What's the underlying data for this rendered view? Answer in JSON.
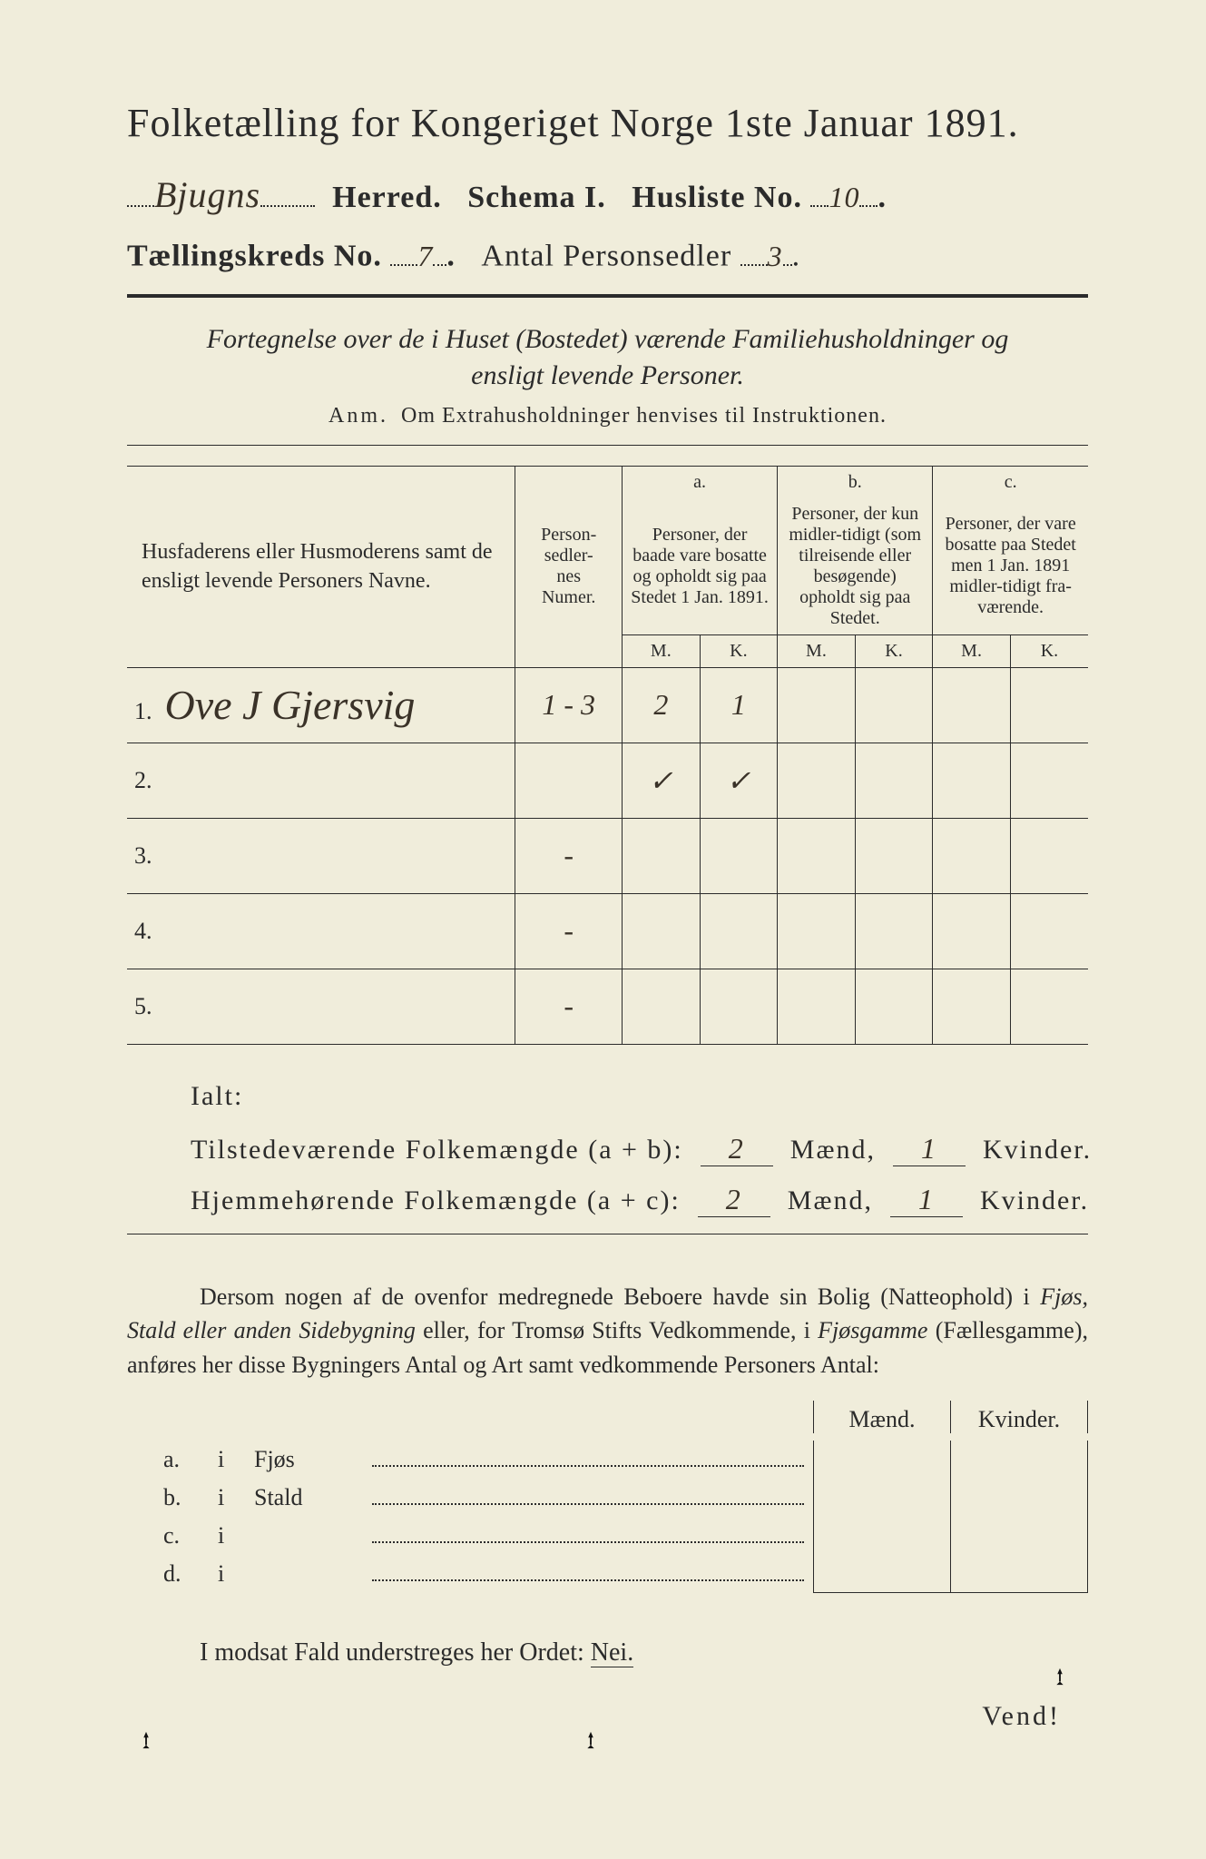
{
  "colors": {
    "paper": "#f0eddb",
    "ink": "#2b2b2b",
    "handwriting": "#3a3228"
  },
  "head": {
    "title": "Folketælling for Kongeriget Norge 1ste Januar 1891.",
    "herred_hw": "Bjugns",
    "herred_lbl": "Herred.",
    "schema": "Schema I.",
    "husliste_lbl": "Husliste No.",
    "husliste_hw": "10",
    "kreds_lbl": "Tællingskreds No.",
    "kreds_hw": "7",
    "antal_lbl": "Antal Personsedler",
    "antal_hw": "3"
  },
  "subtitle": "Fortegnelse over de i Huset (Bostedet) værende Familiehusholdninger og ensligt levende Personer.",
  "anm_lead": "Anm.",
  "anm_rest": "Om Extrahusholdninger henvises til Instruktionen.",
  "table": {
    "h_name": "Husfaderens eller Husmoderens samt de ensligt levende Personers Navne.",
    "h_num": "Person-\nsedler-\nnes\nNumer.",
    "h_a_top": "a.",
    "h_a": "Personer, der baade vare bosatte og opholdt sig paa Stedet 1 Jan. 1891.",
    "h_b_top": "b.",
    "h_b": "Personer, der kun midler-tidigt (som tilreisende eller besøgende) opholdt sig paa Stedet.",
    "h_c_top": "c.",
    "h_c": "Personer, der vare bosatte paa Stedet men 1 Jan. 1891 midler-tidigt fra-værende.",
    "mk_m": "M.",
    "mk_k": "K.",
    "rows": [
      {
        "n": "1.",
        "name_hw": "Ove J Gjersvig",
        "num": "1 - 3",
        "a_m": "2",
        "a_k": "1",
        "b_m": "",
        "b_k": "",
        "c_m": "",
        "c_k": ""
      },
      {
        "n": "2.",
        "name_hw": "",
        "num": "",
        "a_m": "✓",
        "a_k": "✓",
        "b_m": "",
        "b_k": "",
        "c_m": "",
        "c_k": ""
      },
      {
        "n": "3.",
        "name_hw": "",
        "num": "-",
        "a_m": "",
        "a_k": "",
        "b_m": "",
        "b_k": "",
        "c_m": "",
        "c_k": ""
      },
      {
        "n": "4.",
        "name_hw": "",
        "num": "-",
        "a_m": "",
        "a_k": "",
        "b_m": "",
        "b_k": "",
        "c_m": "",
        "c_k": ""
      },
      {
        "n": "5.",
        "name_hw": "",
        "num": "-",
        "a_m": "",
        "a_k": "",
        "b_m": "",
        "b_k": "",
        "c_m": "",
        "c_k": ""
      }
    ]
  },
  "totals": {
    "ialt": "Ialt:",
    "line1_lbl": "Tilstedeværende Folkemængde (a + b):",
    "line2_lbl": "Hjemmehørende Folkemængde (a + c):",
    "maend": "Mænd,",
    "kvinder": "Kvinder.",
    "l1_m": "2",
    "l1_k": "1",
    "l2_m": "2",
    "l2_k": "1"
  },
  "para": {
    "text1": "Dersom nogen af de ovenfor medregnede Beboere havde sin Bolig (Natteophold) i ",
    "it1": "Fjøs, Stald eller anden Sidebygning",
    "text2": " eller, for Tromsø Stifts Vedkommende, i ",
    "it2": "Fjøsgamme",
    "text3": " (Fællesgamme), anføres her disse Bygningers Antal og Art samt vedkommende Personers Antal:"
  },
  "byg": {
    "maend": "Mænd.",
    "kvinder": "Kvinder.",
    "rows": [
      {
        "a": "a.",
        "i": "i",
        "t": "Fjøs"
      },
      {
        "a": "b.",
        "i": "i",
        "t": "Stald"
      },
      {
        "a": "c.",
        "i": "i",
        "t": ""
      },
      {
        "a": "d.",
        "i": "i",
        "t": ""
      }
    ]
  },
  "nei_line": "I modsat Fald understreges her Ordet:",
  "nei_word": "Nei.",
  "vend": "Vend!"
}
